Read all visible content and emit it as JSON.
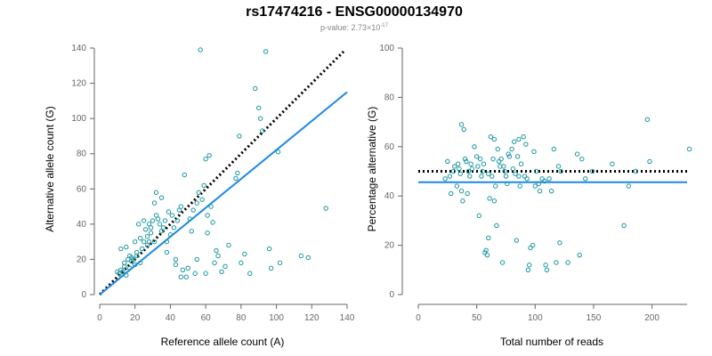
{
  "title": "rs17474216 - ENSG00000134970",
  "subtitle_prefix": "p-value: 2.73×10",
  "subtitle_exp": "-17",
  "colors": {
    "points": "#1a96a0",
    "fit": "#1e88e5",
    "reference": "#000000",
    "axis": "#666666"
  },
  "chart_data": [
    {
      "type": "scatter",
      "xlabel": "Reference allele count (A)",
      "ylabel": "Alternative allele count (G)",
      "xlim": [
        0,
        140
      ],
      "ylim": [
        0,
        140
      ],
      "xticks": [
        0,
        20,
        40,
        60,
        80,
        100,
        120,
        140
      ],
      "yticks": [
        0,
        20,
        40,
        60,
        80,
        100,
        120,
        140
      ],
      "grid": false,
      "fit_line": {
        "x": [
          0,
          140
        ],
        "y": [
          0,
          115
        ]
      },
      "reference_line": {
        "x": [
          0,
          138
        ],
        "y": [
          0,
          138
        ]
      },
      "points": [
        [
          10,
          13
        ],
        [
          11,
          12
        ],
        [
          12,
          14
        ],
        [
          13,
          13
        ],
        [
          14,
          16
        ],
        [
          14,
          18
        ],
        [
          15,
          11
        ],
        [
          16,
          20
        ],
        [
          17,
          15
        ],
        [
          17,
          22
        ],
        [
          18,
          19
        ],
        [
          18,
          21
        ],
        [
          19,
          20
        ],
        [
          20,
          17
        ],
        [
          21,
          22
        ],
        [
          21,
          24
        ],
        [
          22,
          40
        ],
        [
          23,
          32
        ],
        [
          23,
          18
        ],
        [
          24,
          26
        ],
        [
          25,
          42
        ],
        [
          25,
          30
        ],
        [
          26,
          37
        ],
        [
          27,
          28
        ],
        [
          27,
          33
        ],
        [
          28,
          30
        ],
        [
          28,
          40
        ],
        [
          29,
          35
        ],
        [
          29,
          38
        ],
        [
          30,
          42
        ],
        [
          31,
          52
        ],
        [
          31,
          30
        ],
        [
          32,
          58
        ],
        [
          32,
          45
        ],
        [
          33,
          43
        ],
        [
          34,
          40
        ],
        [
          35,
          55
        ],
        [
          35,
          36
        ],
        [
          36,
          38
        ],
        [
          37,
          42
        ],
        [
          38,
          30
        ],
        [
          38,
          24
        ],
        [
          39,
          47
        ],
        [
          40,
          34
        ],
        [
          41,
          45
        ],
        [
          42,
          38
        ],
        [
          43,
          20
        ],
        [
          44,
          42
        ],
        [
          45,
          48
        ],
        [
          46,
          50
        ],
        [
          47,
          14
        ],
        [
          48,
          68
        ],
        [
          49,
          10
        ],
        [
          50,
          15
        ],
        [
          51,
          43
        ],
        [
          52,
          36
        ],
        [
          53,
          48
        ],
        [
          54,
          12
        ],
        [
          55,
          52
        ],
        [
          56,
          58
        ],
        [
          57,
          139
        ],
        [
          58,
          54
        ],
        [
          59,
          62
        ],
        [
          60,
          77
        ],
        [
          61,
          45
        ],
        [
          61,
          35
        ],
        [
          62,
          79
        ],
        [
          63,
          50
        ],
        [
          64,
          41
        ],
        [
          65,
          18
        ],
        [
          66,
          25
        ],
        [
          67,
          22
        ],
        [
          69,
          13
        ],
        [
          73,
          28
        ],
        [
          77,
          66
        ],
        [
          78,
          69
        ],
        [
          79,
          90
        ],
        [
          80,
          18
        ],
        [
          82,
          23
        ],
        [
          88,
          117
        ],
        [
          90,
          106
        ],
        [
          91,
          100
        ],
        [
          92,
          93
        ],
        [
          94,
          138
        ],
        [
          96,
          26
        ],
        [
          97,
          15
        ],
        [
          101,
          81
        ],
        [
          102,
          18
        ],
        [
          114,
          22
        ],
        [
          118,
          21
        ],
        [
          128,
          49
        ],
        [
          85,
          12
        ],
        [
          60,
          12
        ],
        [
          71,
          16
        ],
        [
          55,
          20
        ],
        [
          43,
          17
        ],
        [
          46,
          10
        ],
        [
          12,
          26
        ],
        [
          15,
          27
        ],
        [
          20,
          30
        ]
      ]
    },
    {
      "type": "scatter",
      "xlabel": "Total number of reads",
      "ylabel": "Percentage alternative (G)",
      "xlim": [
        0,
        230
      ],
      "ylim": [
        0,
        100
      ],
      "xticks": [
        0,
        50,
        100,
        150,
        200
      ],
      "yticks": [
        0,
        20,
        40,
        60,
        80,
        100
      ],
      "grid": false,
      "fit_line": {
        "y": 45.6
      },
      "reference_line": {
        "y": 50
      },
      "points": [
        [
          25,
          54
        ],
        [
          27,
          48
        ],
        [
          28,
          41
        ],
        [
          30,
          50
        ],
        [
          31,
          52
        ],
        [
          33,
          44
        ],
        [
          34,
          53
        ],
        [
          35,
          51
        ],
        [
          36,
          49
        ],
        [
          37,
          42
        ],
        [
          37,
          69
        ],
        [
          38,
          38
        ],
        [
          39,
          67
        ],
        [
          40,
          55
        ],
        [
          41,
          54
        ],
        [
          42,
          41
        ],
        [
          43,
          50
        ],
        [
          44,
          48
        ],
        [
          45,
          53
        ],
        [
          46,
          51
        ],
        [
          50,
          56
        ],
        [
          51,
          52
        ],
        [
          52,
          32
        ],
        [
          53,
          55
        ],
        [
          54,
          48
        ],
        [
          55,
          50
        ],
        [
          56,
          53
        ],
        [
          57,
          17
        ],
        [
          58,
          18
        ],
        [
          59,
          16
        ],
        [
          60,
          23
        ],
        [
          60,
          49
        ],
        [
          61,
          39
        ],
        [
          62,
          64
        ],
        [
          63,
          48
        ],
        [
          64,
          55
        ],
        [
          65,
          63
        ],
        [
          66,
          44
        ],
        [
          67,
          28
        ],
        [
          68,
          59
        ],
        [
          69,
          54
        ],
        [
          70,
          52
        ],
        [
          71,
          55
        ],
        [
          72,
          13
        ],
        [
          73,
          52
        ],
        [
          74,
          50
        ],
        [
          75,
          48
        ],
        [
          76,
          45
        ],
        [
          77,
          57
        ],
        [
          78,
          56
        ],
        [
          80,
          59
        ],
        [
          81,
          51
        ],
        [
          82,
          62
        ],
        [
          83,
          49
        ],
        [
          84,
          22
        ],
        [
          85,
          56
        ],
        [
          86,
          48
        ],
        [
          87,
          44
        ],
        [
          88,
          53
        ],
        [
          90,
          64
        ],
        [
          91,
          48
        ],
        [
          92,
          61
        ],
        [
          93,
          47
        ],
        [
          94,
          10
        ],
        [
          95,
          12
        ],
        [
          96,
          19
        ],
        [
          98,
          20
        ],
        [
          99,
          58
        ],
        [
          100,
          44
        ],
        [
          101,
          50
        ],
        [
          103,
          45
        ],
        [
          104,
          42
        ],
        [
          106,
          47
        ],
        [
          108,
          46
        ],
        [
          109,
          12
        ],
        [
          110,
          10
        ],
        [
          112,
          47
        ],
        [
          114,
          42
        ],
        [
          116,
          59
        ],
        [
          118,
          13
        ],
        [
          120,
          52
        ],
        [
          121,
          21
        ],
        [
          122,
          50
        ],
        [
          128,
          13
        ],
        [
          136,
          57
        ],
        [
          138,
          16
        ],
        [
          140,
          55
        ],
        [
          143,
          47
        ],
        [
          149,
          50
        ],
        [
          166,
          53
        ],
        [
          176,
          28
        ],
        [
          180,
          44
        ],
        [
          186,
          50
        ],
        [
          196,
          71
        ],
        [
          198,
          54
        ],
        [
          232,
          59
        ],
        [
          23,
          47
        ],
        [
          48,
          60
        ],
        [
          86,
          63
        ],
        [
          65,
          38
        ]
      ]
    }
  ]
}
